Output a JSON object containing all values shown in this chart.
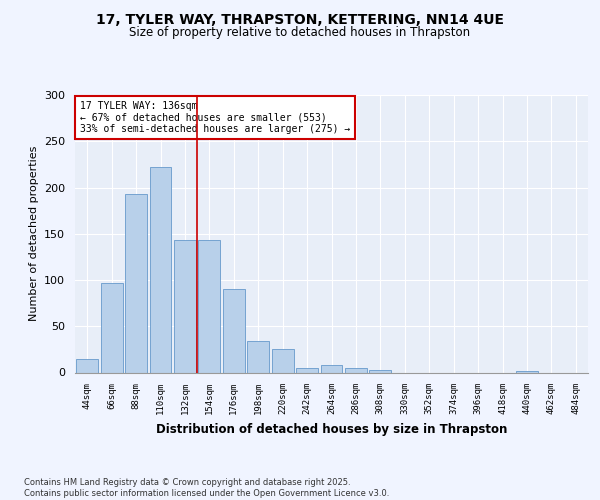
{
  "title_line1": "17, TYLER WAY, THRAPSTON, KETTERING, NN14 4UE",
  "title_line2": "Size of property relative to detached houses in Thrapston",
  "xlabel": "Distribution of detached houses by size in Thrapston",
  "ylabel": "Number of detached properties",
  "categories": [
    "44sqm",
    "66sqm",
    "88sqm",
    "110sqm",
    "132sqm",
    "154sqm",
    "176sqm",
    "198sqm",
    "220sqm",
    "242sqm",
    "264sqm",
    "286sqm",
    "308sqm",
    "330sqm",
    "352sqm",
    "374sqm",
    "396sqm",
    "418sqm",
    "440sqm",
    "462sqm",
    "484sqm"
  ],
  "values": [
    15,
    97,
    193,
    222,
    143,
    143,
    90,
    34,
    25,
    5,
    8,
    5,
    3,
    0,
    0,
    0,
    0,
    0,
    2,
    0,
    0
  ],
  "bar_color": "#b8d0ea",
  "bar_edge_color": "#6699cc",
  "background_color": "#e8eef8",
  "grid_color": "#ffffff",
  "vline_x": 4.5,
  "vline_color": "#cc0000",
  "annotation_text": "17 TYLER WAY: 136sqm\n← 67% of detached houses are smaller (553)\n33% of semi-detached houses are larger (275) →",
  "annotation_box_color": "#ffffff",
  "annotation_box_edge": "#cc0000",
  "footer_text": "Contains HM Land Registry data © Crown copyright and database right 2025.\nContains public sector information licensed under the Open Government Licence v3.0.",
  "ylim": [
    0,
    300
  ],
  "yticks": [
    0,
    50,
    100,
    150,
    200,
    250,
    300
  ],
  "fig_bg": "#f0f4ff"
}
